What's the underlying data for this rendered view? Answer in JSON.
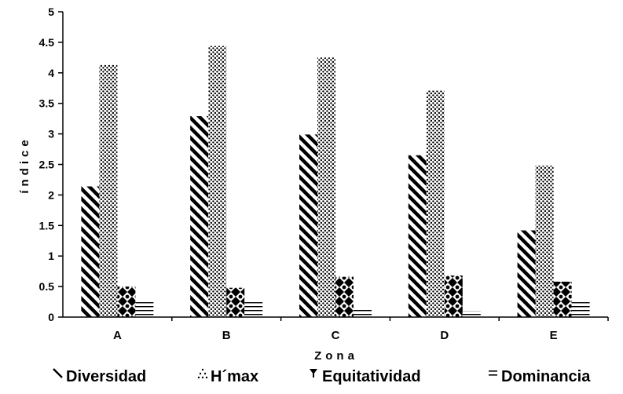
{
  "chart_data": {
    "type": "bar",
    "categories": [
      "A",
      "B",
      "C",
      "D",
      "E"
    ],
    "series": [
      {
        "name": "Diversidad",
        "values": [
          2.14,
          3.29,
          2.99,
          2.65,
          1.42
        ]
      },
      {
        "name": "H´max",
        "values": [
          4.13,
          4.44,
          4.25,
          3.71,
          2.48
        ]
      },
      {
        "name": "Equitatividad",
        "values": [
          0.5,
          0.48,
          0.66,
          0.68,
          0.58
        ]
      },
      {
        "name": "Dominancia",
        "values": [
          0.28,
          0.28,
          0.12,
          0.1,
          0.28
        ]
      }
    ],
    "ylabel": "índice",
    "xlabel": "Zona",
    "ylim": [
      0,
      5
    ],
    "yticks": [
      "0",
      "0.5",
      "1",
      "1.5",
      "2",
      "2.5",
      "3",
      "3.5",
      "4",
      "4.5",
      "5"
    ],
    "grid": false,
    "legend": "bottom"
  }
}
